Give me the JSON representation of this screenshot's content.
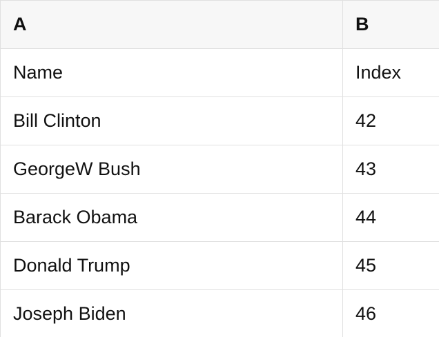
{
  "table": {
    "columns": [
      {
        "label": "A"
      },
      {
        "label": "B"
      }
    ],
    "rows": [
      [
        "Name",
        "Index"
      ],
      [
        "Bill Clinton",
        "42"
      ],
      [
        "GeorgeW Bush",
        "43"
      ],
      [
        "Barack Obama",
        "44"
      ],
      [
        "Donald Trump",
        "45"
      ],
      [
        "Joseph Biden",
        "46"
      ]
    ]
  },
  "colors": {
    "header_bg": "#f7f7f7",
    "cell_bg": "#ffffff",
    "border": "#e0e0e0",
    "text": "#111111"
  }
}
